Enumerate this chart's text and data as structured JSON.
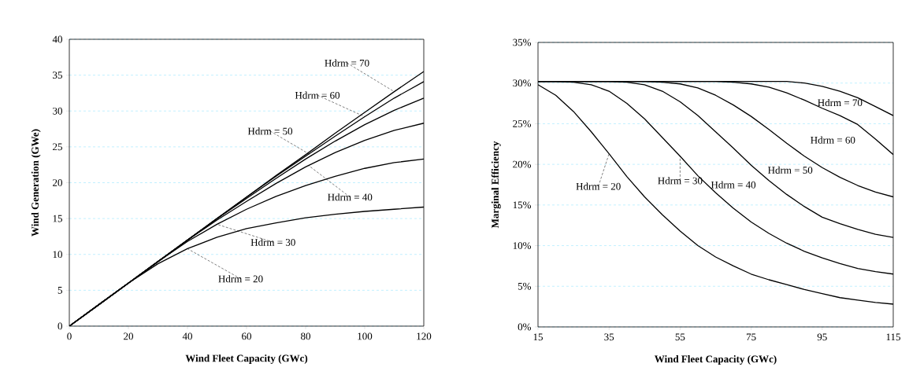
{
  "chart_data": [
    {
      "type": "line",
      "xlabel": "Wind Fleet Capacity (GWc)",
      "ylabel": "Wind Generation (GWe)",
      "x": [
        0,
        10,
        20,
        30,
        40,
        50,
        60,
        70,
        80,
        90,
        100,
        110,
        120
      ],
      "series": [
        {
          "color": "#000000",
          "values": [
            0,
            3,
            6,
            8.7,
            10.8,
            12.4,
            13.6,
            14.4,
            15.1,
            15.6,
            16.0,
            16.3,
            16.6
          ]
        },
        {
          "color": "#000000",
          "values": [
            0,
            3,
            6,
            9.0,
            11.8,
            14.2,
            16.3,
            18.1,
            19.6,
            20.9,
            22.0,
            22.8,
            23.3
          ]
        },
        {
          "color": "#000000",
          "values": [
            0,
            3,
            6,
            9,
            12,
            14.8,
            17.4,
            19.9,
            22.2,
            24.2,
            25.9,
            27.3,
            28.3
          ]
        },
        {
          "color": "#000000",
          "values": [
            0,
            3,
            6,
            9,
            12,
            15,
            17.8,
            20.6,
            23.3,
            25.8,
            28.1,
            30.1,
            31.8
          ]
        },
        {
          "color": "#000000",
          "values": [
            0,
            3,
            6,
            9,
            12,
            15,
            18,
            20.9,
            23.7,
            26.5,
            29.2,
            31.8,
            34.1
          ]
        },
        {
          "color": "#000000",
          "values": [
            0,
            3,
            6,
            9,
            12,
            15,
            18,
            21,
            23.9,
            26.9,
            29.8,
            32.7,
            35.5
          ]
        }
      ],
      "xlim": [
        0,
        120
      ],
      "ylim": [
        0,
        40
      ],
      "xticks": [
        0,
        20,
        40,
        60,
        80,
        100,
        120
      ],
      "yticks": [
        0,
        5,
        10,
        15,
        20,
        25,
        30,
        35,
        40
      ],
      "grid": "y",
      "marker": "none",
      "line_style": "solid",
      "annotations": [
        {
          "text": "Hdrm = 70",
          "x": 110,
          "y": 32.7
        },
        {
          "text": "Hdrm = 60",
          "x": 100,
          "y": 29.2
        },
        {
          "text": "Hdrm = 50",
          "x": 82,
          "y": 23.8
        },
        {
          "text": "Hdrm = 40",
          "x": 81,
          "y": 22.4
        },
        {
          "text": "Hdrm = 30",
          "x": 50,
          "y": 14.2
        },
        {
          "text": "Hdrm = 20",
          "x": 40,
          "y": 10.8
        }
      ]
    },
    {
      "type": "line",
      "xlabel": "Wind Fleet Capacity (GWc)",
      "ylabel": "Marginal Efficiency",
      "x": [
        15,
        20,
        25,
        30,
        35,
        40,
        45,
        50,
        55,
        60,
        65,
        70,
        75,
        80,
        85,
        90,
        95,
        100,
        105,
        110,
        115
      ],
      "series": [
        {
          "color": "#000000",
          "values": [
            29.8,
            28.5,
            26.5,
            24.0,
            21.3,
            18.5,
            16.0,
            13.8,
            11.8,
            10.0,
            8.6,
            7.5,
            6.5,
            5.8,
            5.2,
            4.6,
            4.1,
            3.6,
            3.3,
            3.0,
            2.8
          ]
        },
        {
          "color": "#000000",
          "values": [
            30.2,
            30.2,
            30.1,
            29.8,
            29.0,
            27.5,
            25.6,
            23.3,
            21.0,
            18.6,
            16.5,
            14.6,
            12.9,
            11.5,
            10.3,
            9.3,
            8.5,
            7.8,
            7.2,
            6.8,
            6.5
          ]
        },
        {
          "color": "#000000",
          "values": [
            30.2,
            30.2,
            30.2,
            30.2,
            30.2,
            30.1,
            29.8,
            29.0,
            27.7,
            26.0,
            24.0,
            22.0,
            19.9,
            18.0,
            16.3,
            14.8,
            13.5,
            12.7,
            12.0,
            11.4,
            11.0
          ]
        },
        {
          "color": "#000000",
          "values": [
            30.2,
            30.2,
            30.2,
            30.2,
            30.2,
            30.2,
            30.2,
            30.1,
            29.9,
            29.4,
            28.5,
            27.3,
            25.9,
            24.3,
            22.6,
            21.0,
            19.6,
            18.4,
            17.4,
            16.6,
            16.0
          ]
        },
        {
          "color": "#000000",
          "values": [
            30.2,
            30.2,
            30.2,
            30.2,
            30.2,
            30.2,
            30.2,
            30.2,
            30.2,
            30.2,
            30.2,
            30.1,
            29.9,
            29.5,
            28.8,
            27.9,
            26.9,
            26.0,
            24.9,
            23.1,
            21.2
          ]
        },
        {
          "color": "#000000",
          "values": [
            30.2,
            30.2,
            30.2,
            30.2,
            30.2,
            30.2,
            30.2,
            30.2,
            30.2,
            30.2,
            30.2,
            30.2,
            30.2,
            30.2,
            30.2,
            30.0,
            29.6,
            29.0,
            28.2,
            27.1,
            26.0
          ]
        }
      ],
      "xlim": [
        15,
        115
      ],
      "ylim": [
        0,
        35
      ],
      "xticks": [
        15,
        35,
        55,
        75,
        95,
        115
      ],
      "yticks": [
        {
          "value": 0,
          "label": "0%"
        },
        {
          "value": 5,
          "label": "5%"
        },
        {
          "value": 10,
          "label": "10%"
        },
        {
          "value": 15,
          "label": "15%"
        },
        {
          "value": 20,
          "label": "20%"
        },
        {
          "value": 25,
          "label": "25%"
        },
        {
          "value": 30,
          "label": "30%"
        },
        {
          "value": 35,
          "label": "35%"
        }
      ],
      "grid": "y",
      "marker": "none",
      "line_style": "solid",
      "annotations": [
        {
          "text": "Hdrm = 20",
          "x": 35,
          "y": 21.3
        },
        {
          "text": "Hdrm = 30",
          "x": 55,
          "y": 21.0
        },
        {
          "text": "Hdrm = 40",
          "x": 76,
          "y": 19.5
        },
        {
          "text": "Hdrm = 50",
          "x": 86,
          "y": 22.3
        },
        {
          "text": "Hdrm = 60",
          "x": 98,
          "y": 26.4
        },
        {
          "text": "Hdrm = 70",
          "x": 102,
          "y": 28.7
        }
      ]
    }
  ]
}
